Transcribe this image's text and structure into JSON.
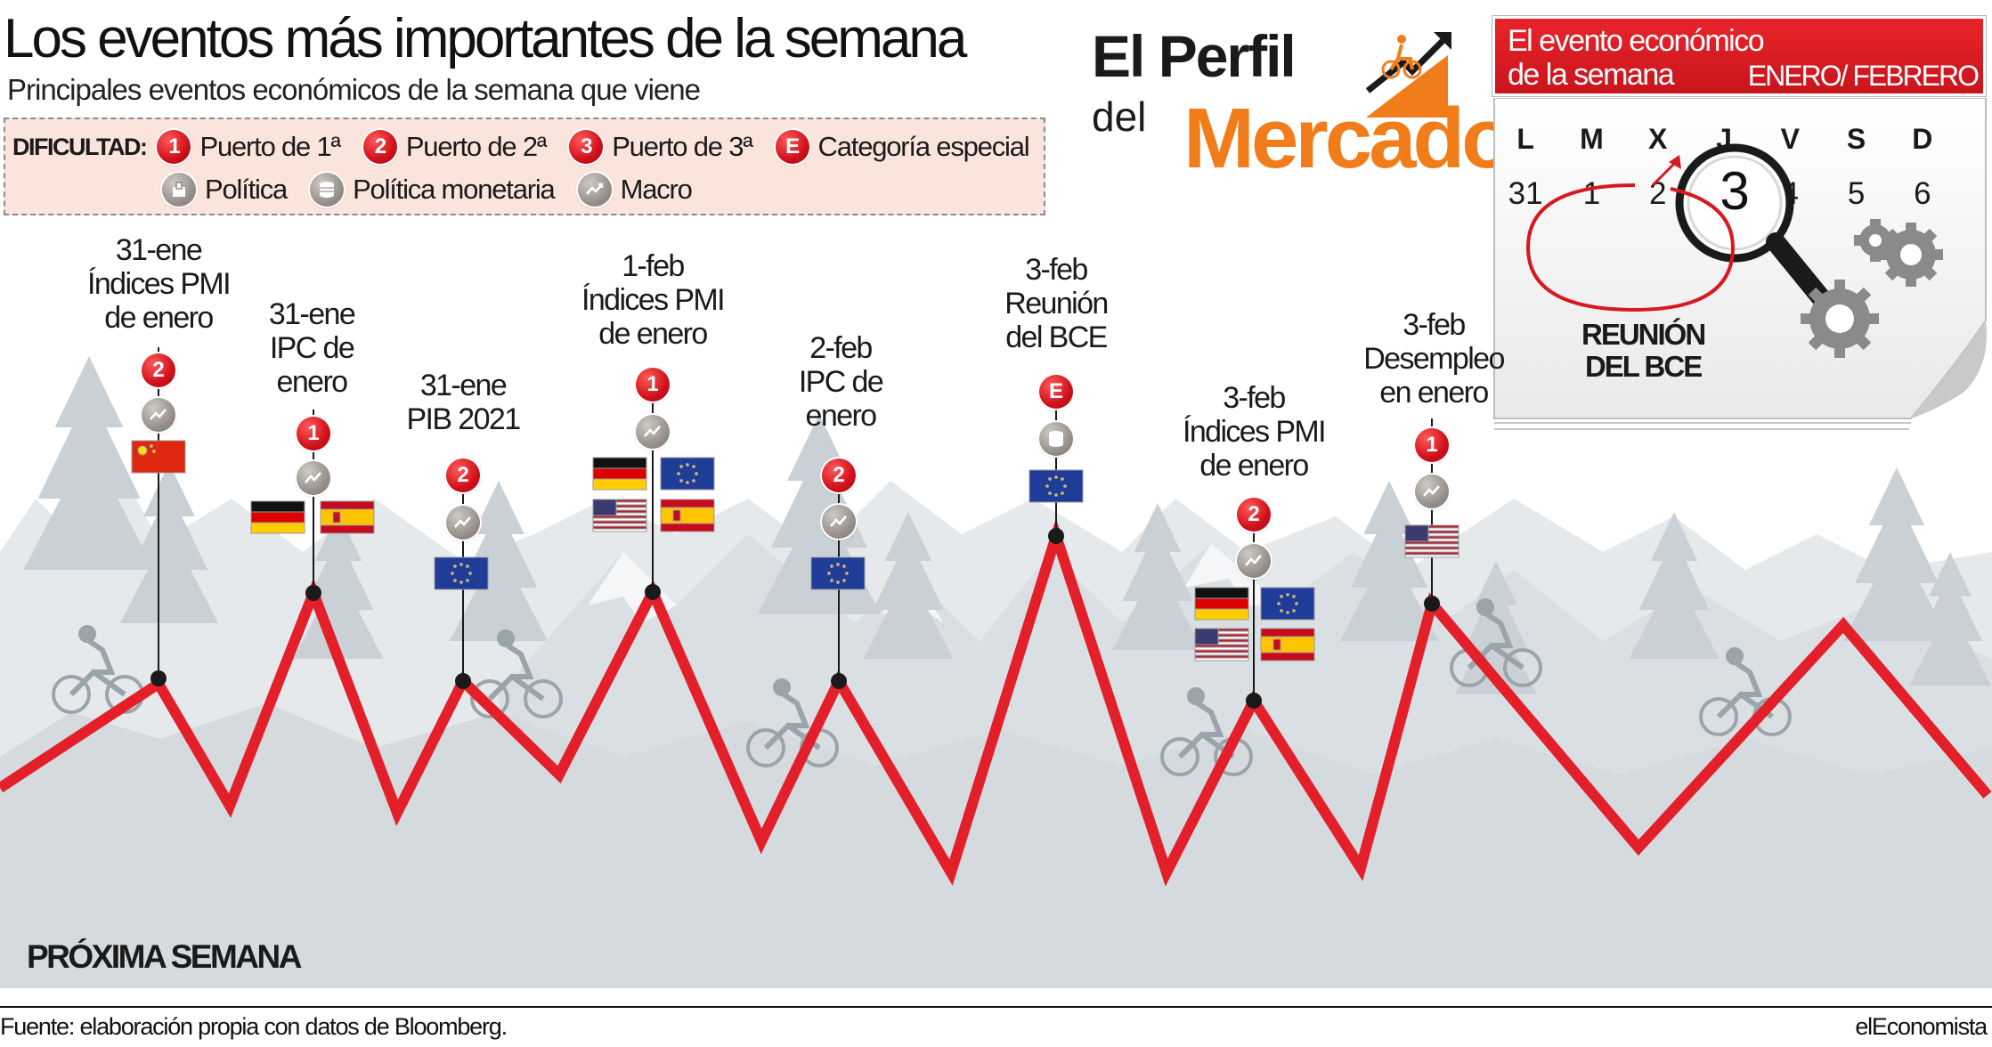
{
  "header": {
    "title": "Los eventos más importantes de la semana",
    "subtitle": "Principales eventos económicos de la semana que viene"
  },
  "legend": {
    "label": "DIFICULTAD:",
    "items": [
      {
        "badge": "1",
        "text": "Puerto de 1ª"
      },
      {
        "badge": "2",
        "text": "Puerto de 2ª"
      },
      {
        "badge": "3",
        "text": "Puerto de 3ª"
      },
      {
        "badge": "E",
        "text": "Categoría especial"
      }
    ],
    "categories": [
      {
        "icon": "politica-icon",
        "text": "Política"
      },
      {
        "icon": "politica-monetaria-icon",
        "text": "Política monetaria"
      },
      {
        "icon": "macro-icon",
        "text": "Macro"
      }
    ]
  },
  "brand": {
    "line1": "El Perfil",
    "line2": "del",
    "line3": "Mercado"
  },
  "calendar": {
    "header_line1": "El evento económico",
    "header_line2": "de la semana",
    "month": "ENERO/ FEBRERO",
    "days": [
      "L",
      "M",
      "X",
      "J",
      "V",
      "S",
      "D"
    ],
    "numbers": [
      "31",
      "1",
      "2",
      "3",
      "4",
      "5",
      "6"
    ],
    "highlight": "3",
    "callout_line1": "REUNIÓN",
    "callout_line2": "DEL BCE"
  },
  "events": [
    {
      "date": "31-ene",
      "line2": "Índices PMI",
      "line3": "de enero",
      "difficulty": "2",
      "category": "macro-icon",
      "flags": [
        "china"
      ]
    },
    {
      "date": "31-ene",
      "line2": "IPC de",
      "line3": "enero",
      "difficulty": "1",
      "category": "macro-icon",
      "flags": [
        "germany",
        "spain"
      ]
    },
    {
      "date": "31-ene",
      "line2": "PIB 2021",
      "line3": "",
      "difficulty": "2",
      "category": "macro-icon",
      "flags": [
        "eu"
      ]
    },
    {
      "date": "1-feb",
      "line2": "Índices PMI",
      "line3": "de enero",
      "difficulty": "1",
      "category": "macro-icon",
      "flags": [
        "germany",
        "eu",
        "usa",
        "spain"
      ]
    },
    {
      "date": "2-feb",
      "line2": "IPC de",
      "line3": "enero",
      "difficulty": "2",
      "category": "macro-icon",
      "flags": [
        "eu"
      ]
    },
    {
      "date": "3-feb",
      "line2": "Reunión",
      "line3": "del BCE",
      "difficulty": "E",
      "category": "politica-monetaria-icon",
      "flags": [
        "eu"
      ]
    },
    {
      "date": "3-feb",
      "line2": "Índices PMI",
      "line3": "de enero",
      "difficulty": "2",
      "category": "macro-icon",
      "flags": [
        "germany",
        "eu",
        "usa",
        "spain"
      ]
    },
    {
      "date": "3-feb",
      "line2": "Desempleo",
      "line3": "en enero",
      "difficulty": "1",
      "category": "macro-icon",
      "flags": [
        "usa"
      ]
    }
  ],
  "section_label": "PRÓXIMA SEMANA",
  "footer": {
    "source": "Fuente: elaboración propia con datos de Bloomberg.",
    "credit": "elEconomista"
  },
  "colors": {
    "route_red": "#e3202a",
    "mercado_orange": "#f07c1a",
    "calendar_red": "#d8181f",
    "mountain_grey": "#dfe3e6",
    "legend_bg": "#fbe4dc"
  }
}
